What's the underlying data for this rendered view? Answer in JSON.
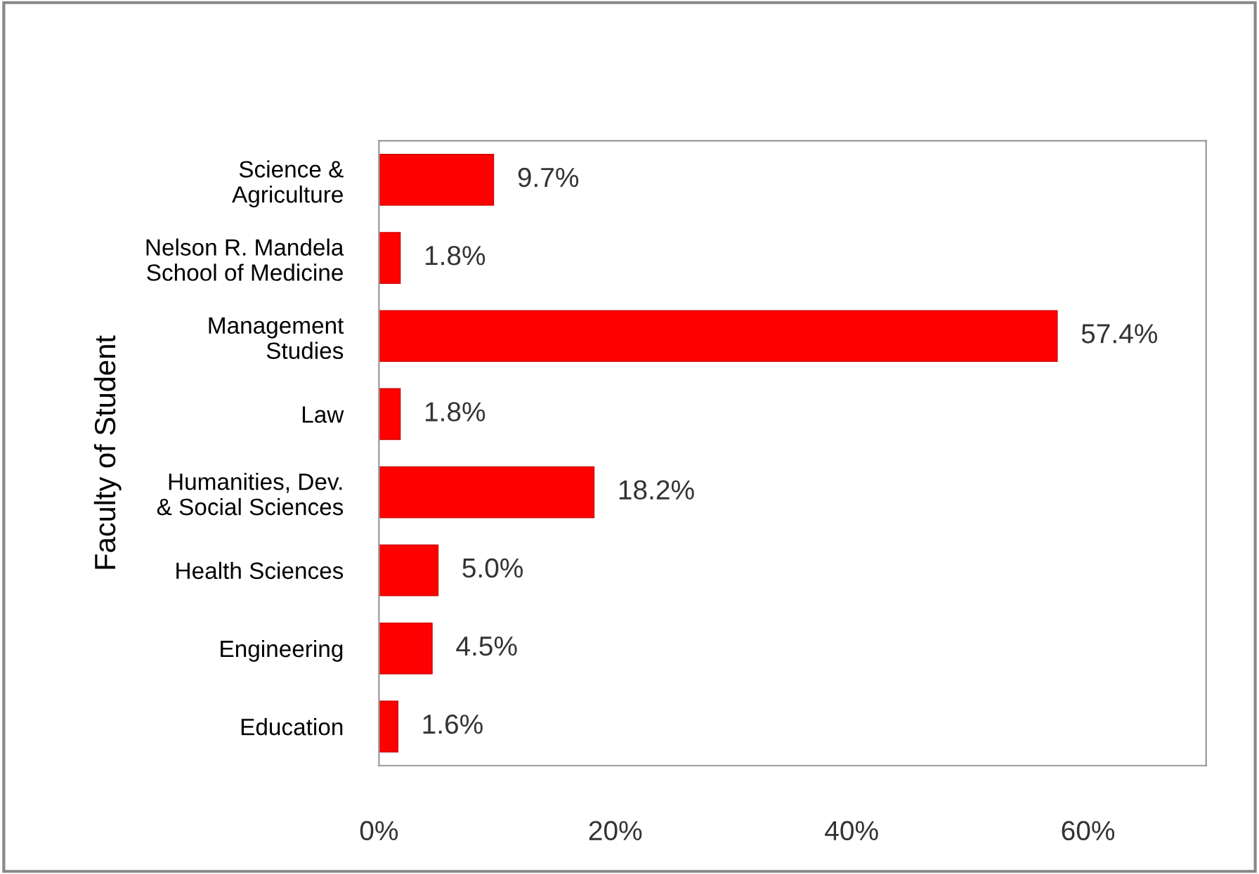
{
  "chart_data": {
    "type": "bar",
    "orientation": "horizontal",
    "ylabel": "Faculty of Student",
    "categories": [
      "Science &\nAgriculture",
      "Nelson R. Mandela\nSchool of Medicine",
      "Management\nStudies",
      "Law",
      "Humanities, Dev.\n& Social Sciences",
      "Health Sciences",
      "Engineering",
      "Education"
    ],
    "values": [
      9.7,
      1.8,
      57.4,
      1.8,
      18.2,
      5.0,
      4.5,
      1.6
    ],
    "value_labels": [
      "9.7%",
      "1.8%",
      "57.4%",
      "1.8%",
      "18.2%",
      "5.0%",
      "4.5%",
      "1.6%"
    ],
    "color": "#ff0000",
    "xlim": [
      0,
      70
    ],
    "xticks": [
      {
        "value": 0,
        "label": "0%"
      },
      {
        "value": 20,
        "label": "20%"
      },
      {
        "value": 40,
        "label": "40%"
      },
      {
        "value": 60,
        "label": "60%"
      }
    ],
    "grid": false,
    "legend": false
  }
}
